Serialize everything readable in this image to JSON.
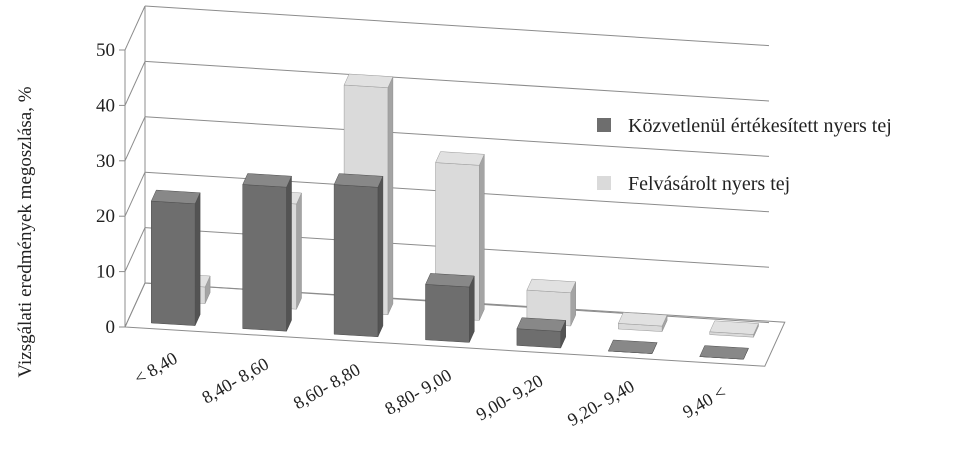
{
  "chart_data": {
    "type": "bar",
    "variant": "3d-clustered-depth",
    "title": "",
    "ylabel": "Vizsgálati  eredmények megoszlása, %",
    "xlabel": "",
    "ylim": [
      0,
      50
    ],
    "yticks": [
      0,
      10,
      20,
      30,
      40,
      50
    ],
    "grid": true,
    "legend_position": "right",
    "categories": [
      "< 8,40",
      "8,40- 8,60",
      "8,60- 8,80",
      "8,80- 9,00",
      "9,00- 9,20",
      "9,20- 9,40",
      "9,40 <"
    ],
    "series": [
      {
        "name": "Közvetlenül értékesített nyers tej",
        "color": "#6e6e6e",
        "values": [
          22,
          26,
          27,
          10,
          3,
          0,
          0
        ]
      },
      {
        "name": "Felvásárolt nyers tej",
        "color": "#dadada",
        "values": [
          3,
          19,
          41,
          28,
          6,
          1,
          0.5
        ]
      }
    ]
  }
}
